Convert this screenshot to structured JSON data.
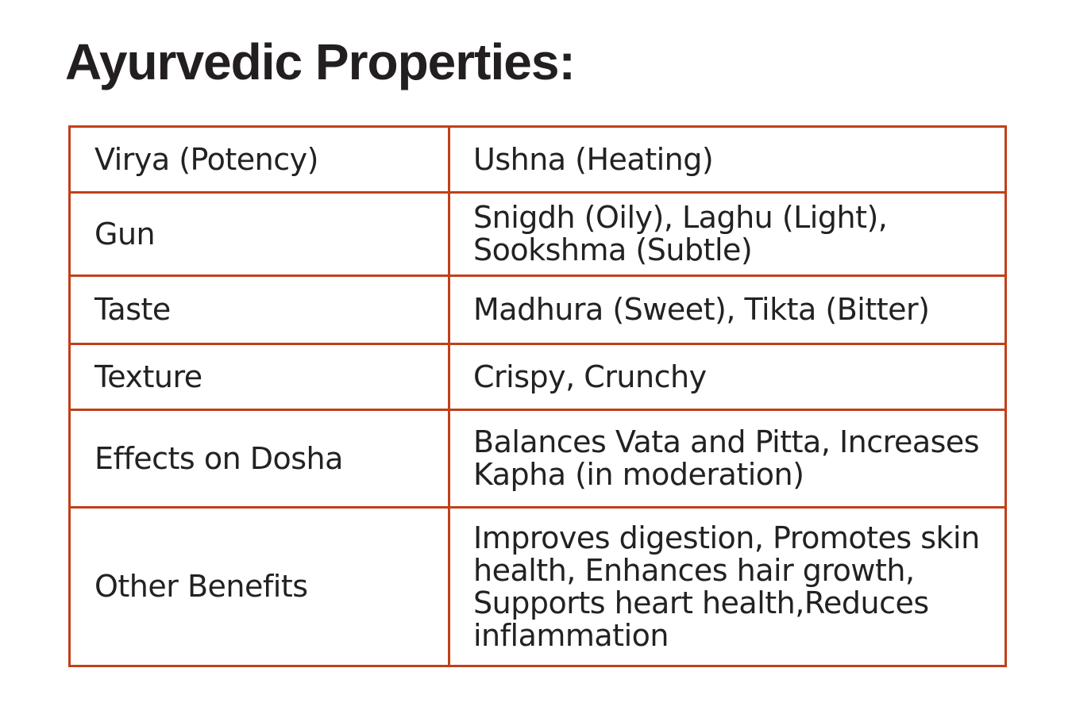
{
  "title": "Ayurvedic Properties:",
  "colors": {
    "border": "#c0401a",
    "text": "#222222"
  },
  "rows": [
    {
      "property": "Virya (Potency)",
      "value": "Ushna (Heating)"
    },
    {
      "property": "Gun",
      "value": "Snigdh (Oily), Laghu (Light), Sookshma (Subtle)"
    },
    {
      "property": "Taste",
      "value": "Madhura (Sweet), Tikta (Bitter)"
    },
    {
      "property": "Texture",
      "value": "Crispy, Crunchy"
    },
    {
      "property": "Effects on Dosha",
      "value": "Balances Vata and Pitta, Increases Kapha (in moderation)"
    },
    {
      "property": "Other Benefits",
      "value": "Improves digestion, Promotes skin health, Enhances hair growth, Supports heart health,Reduces inflammation"
    }
  ]
}
